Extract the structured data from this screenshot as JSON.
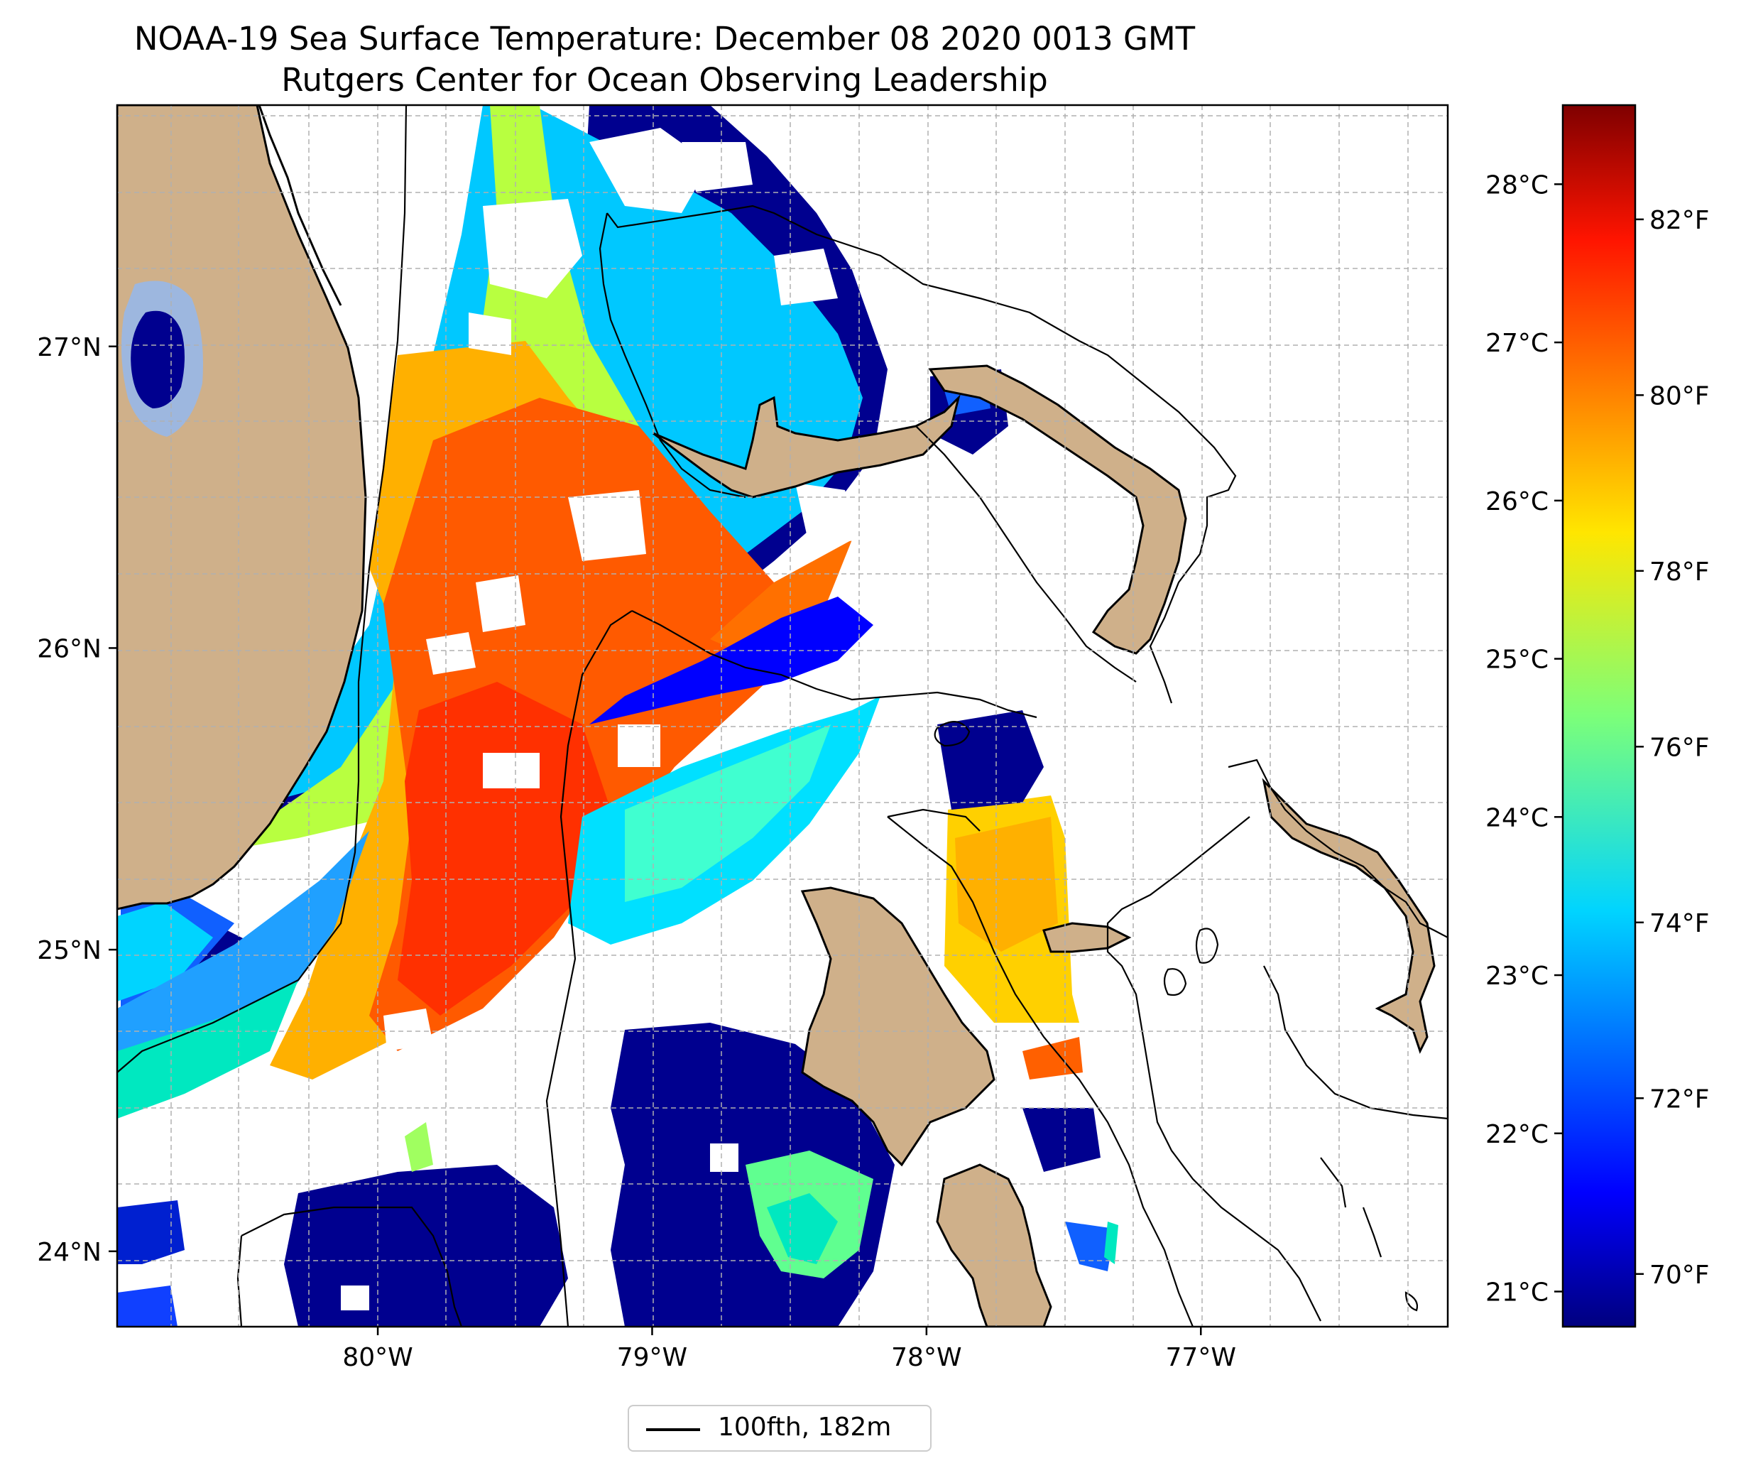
{
  "title": {
    "line1": "NOAA-19 Sea Surface Temperature: December 08 2020 0013 GMT",
    "line2": "Rutgers Center for Ocean Observing Leadership"
  },
  "map": {
    "lon_range": [
      -80.95,
      -76.1
    ],
    "lat_range": [
      23.75,
      27.8
    ],
    "lon_ticks": [
      {
        "value": -80,
        "label": "80°W"
      },
      {
        "value": -79,
        "label": "79°W"
      },
      {
        "value": -78,
        "label": "78°W"
      },
      {
        "value": -77,
        "label": "77°W"
      }
    ],
    "lat_ticks": [
      {
        "value": 24,
        "label": "24°N"
      },
      {
        "value": 25,
        "label": "25°N"
      },
      {
        "value": 26,
        "label": "26°N"
      },
      {
        "value": 27,
        "label": "27°N"
      }
    ],
    "gridlines": true,
    "land_color": "#cfb08a",
    "lake_color": "#9db7df"
  },
  "colorbar": {
    "colormap": "jet",
    "fahrenheit_ticks": [
      "70°F",
      "72°F",
      "74°F",
      "76°F",
      "78°F",
      "80°F",
      "82°F"
    ],
    "fahrenheit_values": [
      70,
      72,
      74,
      76,
      78,
      80,
      82
    ],
    "celsius_ticks": [
      "21°C",
      "22°C",
      "23°C",
      "24°C",
      "25°C",
      "26°C",
      "27°C",
      "28°C"
    ],
    "celsius_values": [
      21,
      22,
      23,
      24,
      25,
      26,
      27,
      28
    ],
    "range_f": [
      69.4,
      83.3
    ]
  },
  "legend": {
    "label": "100fth, 182m",
    "line_color": "#000000",
    "location": "bottom-center"
  }
}
